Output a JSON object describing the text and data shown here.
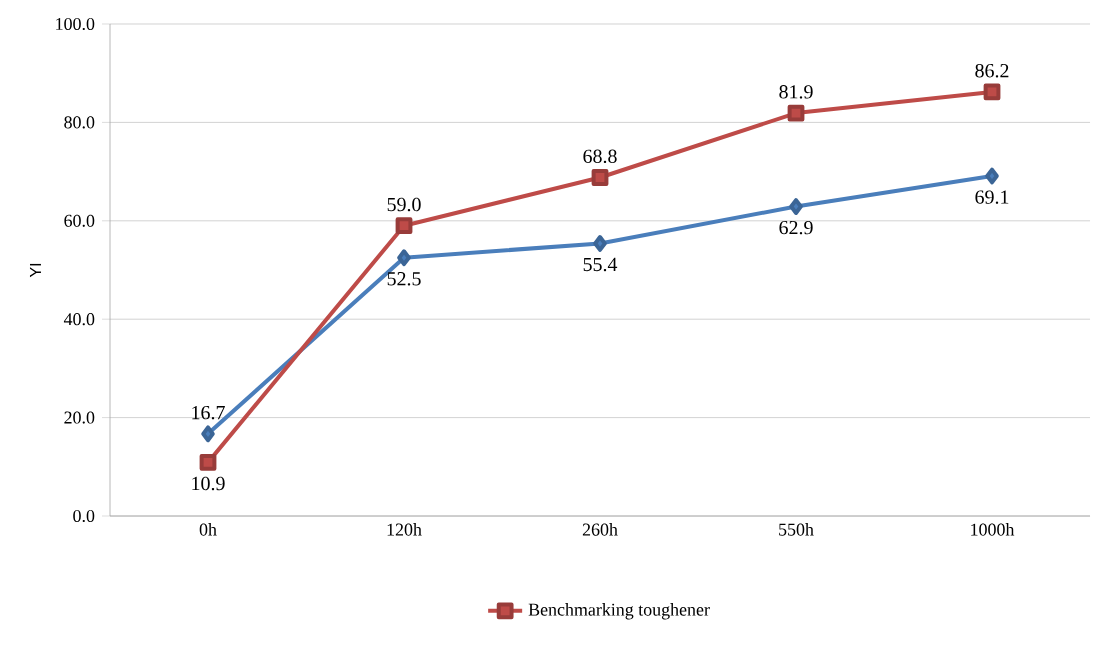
{
  "chart_data": {
    "type": "line",
    "ylabel": "YI",
    "categories": [
      "0h",
      "120h",
      "260h",
      "550h",
      "1000h"
    ],
    "series": [
      {
        "color": "#4a7ebb",
        "marker": "diamond",
        "values": [
          16.7,
          52.5,
          55.4,
          62.9,
          69.1
        ],
        "value_labels": [
          "16.7",
          "52.5",
          "55.4",
          "62.9",
          "69.1"
        ]
      },
      {
        "name": "Benchmarking toughener",
        "color": "#be4b48",
        "marker": "square",
        "values": [
          10.9,
          59.0,
          68.8,
          81.9,
          86.2
        ],
        "value_labels": [
          "10.9",
          "59.0",
          "68.8",
          "81.9",
          "86.2"
        ]
      }
    ],
    "ylim": [
      0,
      100
    ],
    "yticks": [
      {
        "value": 0,
        "label": "0.0"
      },
      {
        "value": 20,
        "label": "20.0"
      },
      {
        "value": 40,
        "label": "40.0"
      },
      {
        "value": 60,
        "label": "60.0"
      },
      {
        "value": 80,
        "label": "80.0"
      },
      {
        "value": 100,
        "label": "100.0"
      }
    ],
    "grid": "y",
    "legend": "bottom",
    "line_style": "solid"
  }
}
